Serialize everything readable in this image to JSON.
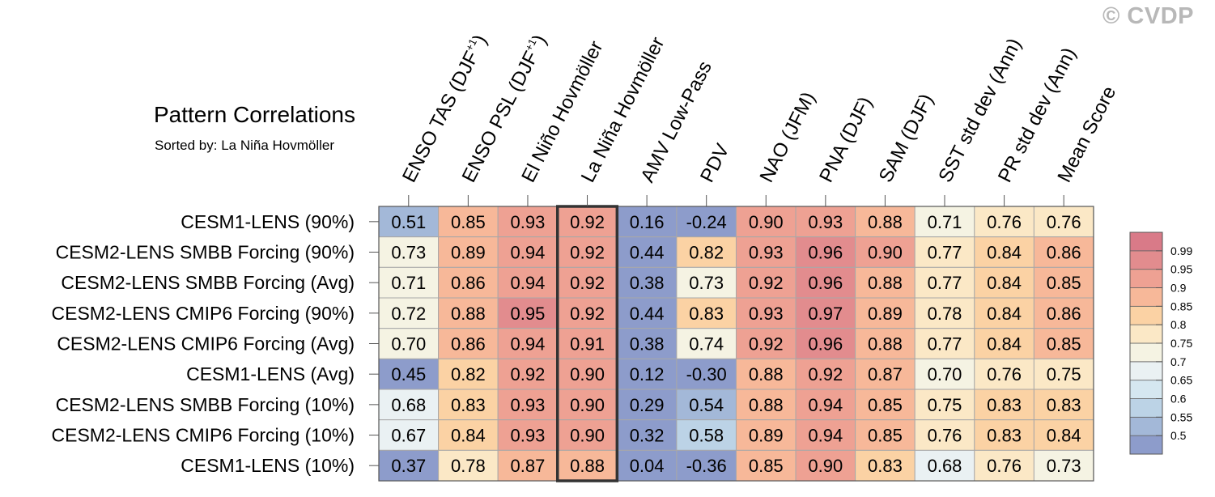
{
  "watermark": "© CVDP",
  "chart_data": {
    "type": "heatmap",
    "title": "Pattern Correlations",
    "subtitle": "Sorted by: La Niña Hovmöller",
    "highlighted_column": "La Niña Hovmöller",
    "columns": [
      {
        "main": "ENSO TAS (DJF",
        "sup": "+1",
        "close": ")"
      },
      {
        "main": "ENSO PSL (DJF",
        "sup": "+1",
        "close": ")"
      },
      {
        "main": "El Niño Hovmöller"
      },
      {
        "main": "La Niña Hovmöller"
      },
      {
        "main": "AMV Low-Pass"
      },
      {
        "main": "PDV"
      },
      {
        "main": "NAO (JFM)"
      },
      {
        "main": "PNA (DJF)"
      },
      {
        "main": "SAM (DJF)"
      },
      {
        "main": "SST std dev (Ann)"
      },
      {
        "main": "PR std dev (Ann)"
      },
      {
        "main": "Mean Score"
      }
    ],
    "rows": [
      {
        "label": "CESM1-LENS (90%)",
        "values": [
          "0.51",
          "0.85",
          "0.93",
          "0.92",
          "0.16",
          "-0.24",
          "0.90",
          "0.93",
          "0.88",
          "0.71",
          "0.76",
          "0.76"
        ]
      },
      {
        "label": "CESM2-LENS SMBB Forcing (90%)",
        "values": [
          "0.73",
          "0.89",
          "0.94",
          "0.92",
          "0.44",
          "0.82",
          "0.93",
          "0.96",
          "0.90",
          "0.77",
          "0.84",
          "0.86"
        ]
      },
      {
        "label": "CESM2-LENS SMBB Forcing (Avg)",
        "values": [
          "0.71",
          "0.86",
          "0.94",
          "0.92",
          "0.38",
          "0.73",
          "0.92",
          "0.96",
          "0.88",
          "0.77",
          "0.84",
          "0.85"
        ]
      },
      {
        "label": "CESM2-LENS CMIP6 Forcing (90%)",
        "values": [
          "0.72",
          "0.88",
          "0.95",
          "0.92",
          "0.44",
          "0.83",
          "0.93",
          "0.97",
          "0.89",
          "0.78",
          "0.84",
          "0.86"
        ]
      },
      {
        "label": "CESM2-LENS CMIP6 Forcing (Avg)",
        "values": [
          "0.70",
          "0.86",
          "0.94",
          "0.91",
          "0.38",
          "0.74",
          "0.92",
          "0.96",
          "0.88",
          "0.77",
          "0.84",
          "0.85"
        ]
      },
      {
        "label": "CESM1-LENS (Avg)",
        "values": [
          "0.45",
          "0.82",
          "0.92",
          "0.90",
          "0.12",
          "-0.30",
          "0.88",
          "0.92",
          "0.87",
          "0.70",
          "0.76",
          "0.75"
        ]
      },
      {
        "label": "CESM2-LENS SMBB Forcing (10%)",
        "values": [
          "0.68",
          "0.83",
          "0.93",
          "0.90",
          "0.29",
          "0.54",
          "0.88",
          "0.94",
          "0.85",
          "0.75",
          "0.83",
          "0.83"
        ]
      },
      {
        "label": "CESM2-LENS CMIP6 Forcing (10%)",
        "values": [
          "0.67",
          "0.84",
          "0.93",
          "0.90",
          "0.32",
          "0.58",
          "0.89",
          "0.94",
          "0.85",
          "0.76",
          "0.83",
          "0.84"
        ]
      },
      {
        "label": "CESM1-LENS (10%)",
        "values": [
          "0.37",
          "0.78",
          "0.87",
          "0.88",
          "0.04",
          "-0.36",
          "0.85",
          "0.90",
          "0.83",
          "0.68",
          "0.76",
          "0.73"
        ]
      }
    ],
    "colorbar": {
      "levels": [
        0.5,
        0.55,
        0.6,
        0.65,
        0.7,
        0.75,
        0.8,
        0.85,
        0.9,
        0.95,
        0.99
      ],
      "labels": [
        "0.5",
        "0.55",
        "0.6",
        "0.65",
        "0.7",
        "0.75",
        "0.8",
        "0.85",
        "0.9",
        "0.95",
        "0.99"
      ],
      "colors": [
        "#8d9ccb",
        "#a3b8d8",
        "#bcd3e6",
        "#d5e7f0",
        "#eaf1f3",
        "#f5f3e3",
        "#fbe8c6",
        "#fbd2a4",
        "#f7b899",
        "#eea193",
        "#e28c8e",
        "#d97a88"
      ]
    }
  }
}
